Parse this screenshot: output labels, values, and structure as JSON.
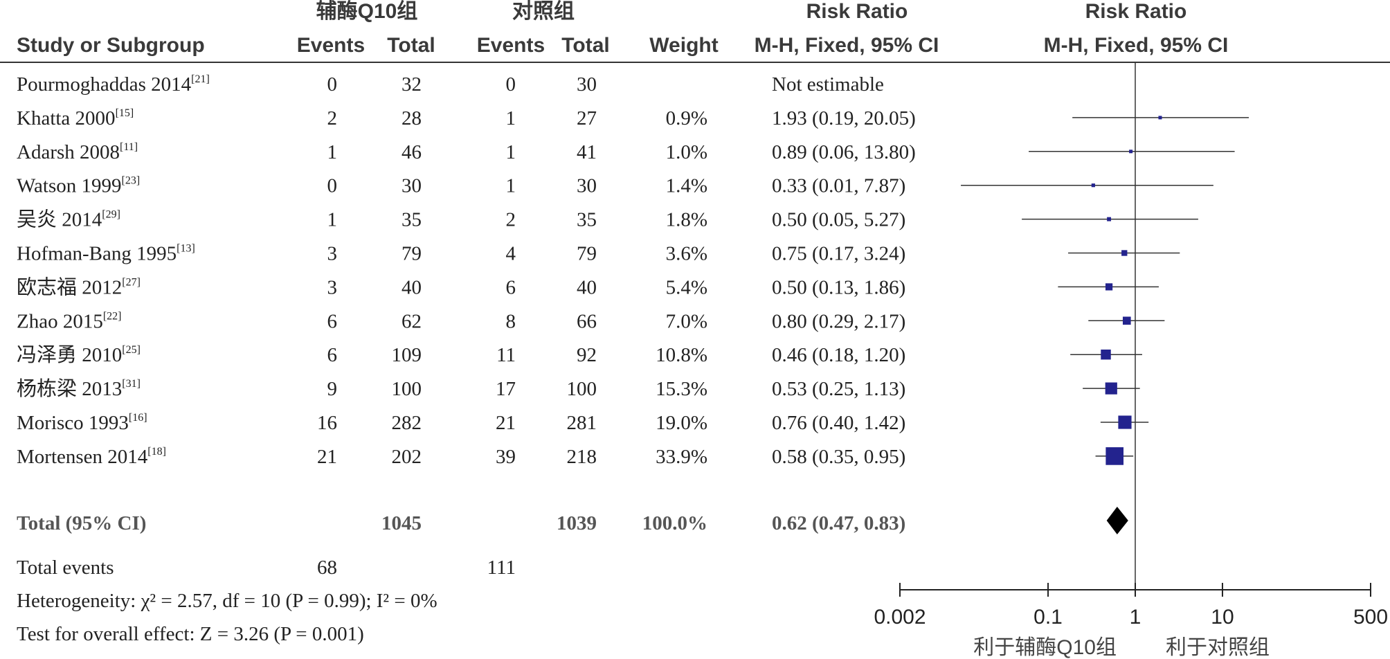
{
  "header": {
    "group1": "辅酶Q10组",
    "group2": "对照组",
    "risk_ratio": "Risk Ratio",
    "study_col": "Study or Subgroup",
    "events": "Events",
    "total": "Total",
    "weight": "Weight",
    "method": "M-H, Fixed, 95% CI"
  },
  "chart_data": {
    "type": "forest",
    "x_axis": {
      "scale": "log",
      "ticks": [
        0.002,
        0.1,
        1,
        10,
        500
      ],
      "tick_labels": [
        "0.002",
        "0.1",
        "1",
        "10",
        "500"
      ],
      "range": [
        0.002,
        500
      ],
      "favours_left": "利于辅酶Q10组",
      "favours_right": "利于对照组"
    },
    "studies": [
      {
        "name": "Pourmoghaddas 2014",
        "ref": "[21]",
        "e1": "0",
        "t1": "32",
        "e2": "0",
        "t2": "30",
        "weight": "",
        "ci_text": "Not estimable",
        "rr": null,
        "lo": null,
        "hi": null,
        "w": 0
      },
      {
        "name": "Khatta 2000",
        "ref": "[15]",
        "e1": "2",
        "t1": "28",
        "e2": "1",
        "t2": "27",
        "weight": "0.9%",
        "ci_text": "1.93 (0.19, 20.05)",
        "rr": 1.93,
        "lo": 0.19,
        "hi": 20.05,
        "w": 0.9
      },
      {
        "name": "Adarsh 2008",
        "ref": "[11]",
        "e1": "1",
        "t1": "46",
        "e2": "1",
        "t2": "41",
        "weight": "1.0%",
        "ci_text": "0.89 (0.06, 13.80)",
        "rr": 0.89,
        "lo": 0.06,
        "hi": 13.8,
        "w": 1.0
      },
      {
        "name": "Watson 1999",
        "ref": "[23]",
        "e1": "0",
        "t1": "30",
        "e2": "1",
        "t2": "30",
        "weight": "1.4%",
        "ci_text": "0.33 (0.01, 7.87)",
        "rr": 0.33,
        "lo": 0.01,
        "hi": 7.87,
        "w": 1.4
      },
      {
        "name": "吴炎 2014",
        "ref": "[29]",
        "e1": "1",
        "t1": "35",
        "e2": "2",
        "t2": "35",
        "weight": "1.8%",
        "ci_text": "0.50 (0.05, 5.27)",
        "rr": 0.5,
        "lo": 0.05,
        "hi": 5.27,
        "w": 1.8
      },
      {
        "name": "Hofman-Bang 1995",
        "ref": "[13]",
        "e1": "3",
        "t1": "79",
        "e2": "4",
        "t2": "79",
        "weight": "3.6%",
        "ci_text": "0.75 (0.17, 3.24)",
        "rr": 0.75,
        "lo": 0.17,
        "hi": 3.24,
        "w": 3.6
      },
      {
        "name": "欧志福 2012",
        "ref": "[27]",
        "e1": "3",
        "t1": "40",
        "e2": "6",
        "t2": "40",
        "weight": "5.4%",
        "ci_text": "0.50 (0.13, 1.86)",
        "rr": 0.5,
        "lo": 0.13,
        "hi": 1.86,
        "w": 5.4
      },
      {
        "name": "Zhao 2015",
        "ref": "[22]",
        "e1": "6",
        "t1": "62",
        "e2": "8",
        "t2": "66",
        "weight": "7.0%",
        "ci_text": "0.80 (0.29, 2.17)",
        "rr": 0.8,
        "lo": 0.29,
        "hi": 2.17,
        "w": 7.0
      },
      {
        "name": "冯泽勇 2010",
        "ref": "[25]",
        "e1": "6",
        "t1": "109",
        "e2": "11",
        "t2": "92",
        "weight": "10.8%",
        "ci_text": "0.46 (0.18, 1.20)",
        "rr": 0.46,
        "lo": 0.18,
        "hi": 1.2,
        "w": 10.8
      },
      {
        "name": "杨栋梁 2013",
        "ref": "[31]",
        "e1": "9",
        "t1": "100",
        "e2": "17",
        "t2": "100",
        "weight": "15.3%",
        "ci_text": "0.53 (0.25, 1.13)",
        "rr": 0.53,
        "lo": 0.25,
        "hi": 1.13,
        "w": 15.3
      },
      {
        "name": "Morisco 1993",
        "ref": "[16]",
        "e1": "16",
        "t1": "282",
        "e2": "21",
        "t2": "281",
        "weight": "19.0%",
        "ci_text": "0.76 (0.40, 1.42)",
        "rr": 0.76,
        "lo": 0.4,
        "hi": 1.42,
        "w": 19.0
      },
      {
        "name": "Mortensen 2014",
        "ref": "[18]",
        "e1": "21",
        "t1": "202",
        "e2": "39",
        "t2": "218",
        "weight": "33.9%",
        "ci_text": "0.58 (0.35, 0.95)",
        "rr": 0.58,
        "lo": 0.35,
        "hi": 0.95,
        "w": 33.9
      }
    ],
    "total": {
      "label": "Total (95% CI)",
      "t1": "1045",
      "t2": "1039",
      "weight": "100.0%",
      "ci_text": "0.62 (0.47, 0.83)",
      "rr": 0.62,
      "lo": 0.47,
      "hi": 0.83
    },
    "total_events": {
      "label": "Total events",
      "e1": "68",
      "e2": "111"
    },
    "heterogeneity": "Heterogeneity: χ² = 2.57, df = 10 (P = 0.99); I² = 0%",
    "overall_effect": "Test for overall effect: Z = 3.26 (P = 0.001)",
    "colors": {
      "square": "#23238e",
      "diamond": "#000000",
      "line": "#333333"
    }
  }
}
